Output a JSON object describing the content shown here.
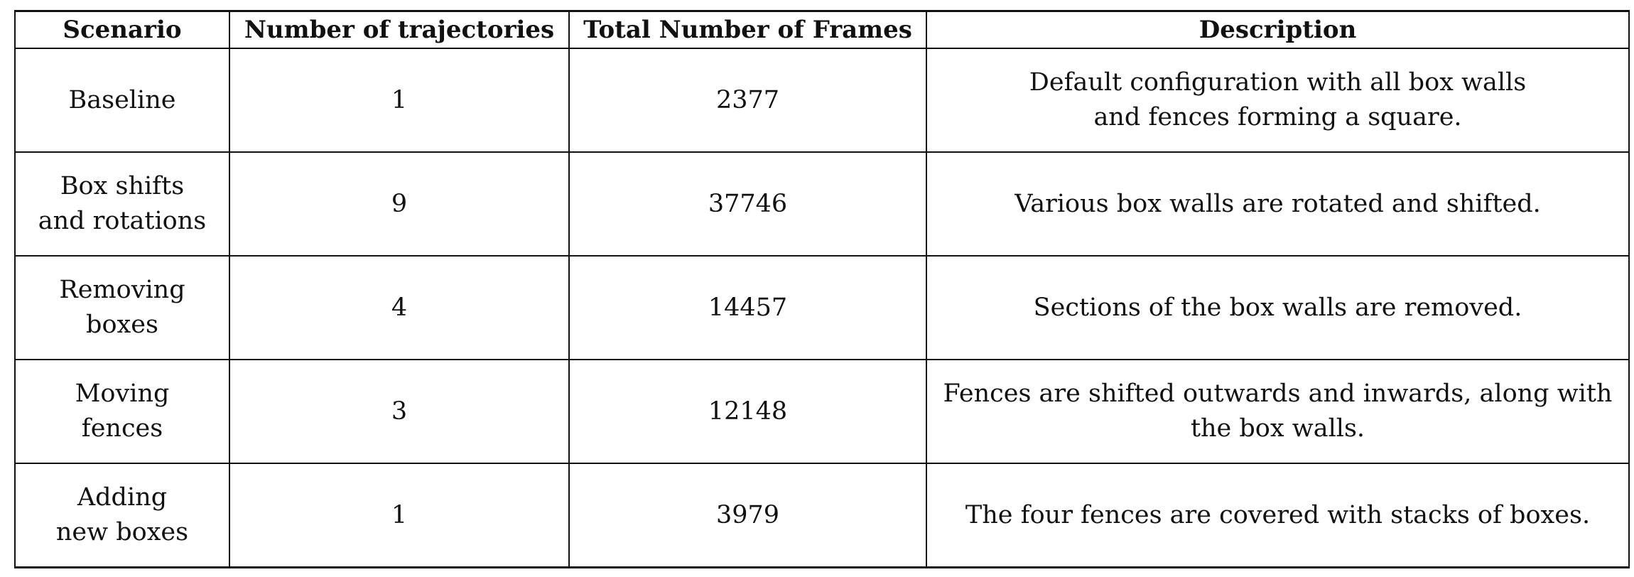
{
  "table": {
    "headers": [
      "Scenario",
      "Number of trajectories",
      "Total Number of Frames",
      "Description"
    ],
    "rows": [
      {
        "scenario_lines": [
          "Baseline"
        ],
        "trajectories": "1",
        "frames": "2377",
        "description_lines": [
          "Default configuration with all box walls",
          "and fences forming a square."
        ]
      },
      {
        "scenario_lines": [
          "Box shifts",
          "and rotations"
        ],
        "trajectories": "9",
        "frames": "37746",
        "description_lines": [
          "Various box walls are rotated and shifted."
        ]
      },
      {
        "scenario_lines": [
          "Removing",
          "boxes"
        ],
        "trajectories": "4",
        "frames": "14457",
        "description_lines": [
          "Sections of the box walls are removed."
        ]
      },
      {
        "scenario_lines": [
          "Moving",
          "fences"
        ],
        "trajectories": "3",
        "frames": "12148",
        "description_lines": [
          "Fences are shifted outwards and inwards, along with",
          "the box walls."
        ]
      },
      {
        "scenario_lines": [
          "Adding",
          "new boxes"
        ],
        "trajectories": "1",
        "frames": "3979",
        "description_lines": [
          "The four fences are covered with stacks of boxes."
        ]
      }
    ]
  }
}
